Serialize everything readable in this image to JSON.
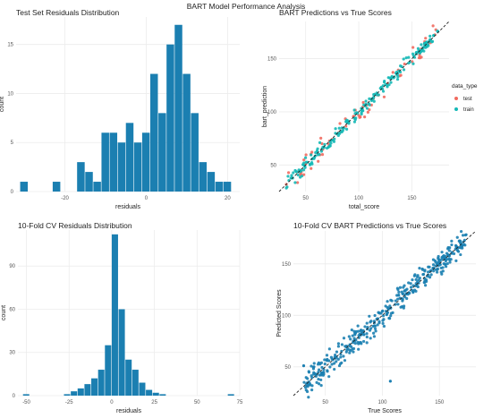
{
  "figure": {
    "title": "BART Model Performance Analysis"
  },
  "colors": {
    "bar": "#1b7fb1",
    "test": "#f16a5f",
    "train": "#14b8b6",
    "cv_point": "#1b7fb1",
    "grid": "#ececec",
    "axis_text": "#555555"
  },
  "chart_data": [
    {
      "id": "test_hist",
      "type": "bar",
      "title": "Test Set Residuals Distribution",
      "xlabel": "residuals",
      "ylabel": "count",
      "xlim": [
        -32,
        23
      ],
      "ylim": [
        0,
        17.8
      ],
      "xticks": [
        -20,
        0,
        20
      ],
      "yticks": [
        0,
        5,
        10,
        15
      ],
      "bin_width": 2,
      "bins": [
        {
          "x": -30,
          "count": 1
        },
        {
          "x": -22,
          "count": 1
        },
        {
          "x": -16,
          "count": 3
        },
        {
          "x": -14,
          "count": 2
        },
        {
          "x": -12,
          "count": 1
        },
        {
          "x": -10,
          "count": 6
        },
        {
          "x": -8,
          "count": 6
        },
        {
          "x": -6,
          "count": 5
        },
        {
          "x": -4,
          "count": 7
        },
        {
          "x": -2,
          "count": 5
        },
        {
          "x": 0,
          "count": 6
        },
        {
          "x": 2,
          "count": 12
        },
        {
          "x": 4,
          "count": 8
        },
        {
          "x": 6,
          "count": 15
        },
        {
          "x": 8,
          "count": 17
        },
        {
          "x": 10,
          "count": 12
        },
        {
          "x": 12,
          "count": 8
        },
        {
          "x": 14,
          "count": 3
        },
        {
          "x": 16,
          "count": 2
        },
        {
          "x": 18,
          "count": 1
        },
        {
          "x": 20,
          "count": 1
        }
      ]
    },
    {
      "id": "test_scatter",
      "type": "scatter",
      "title": "BART Predictions vs True Scores",
      "xlabel": "total_score",
      "ylabel": "bart_prediction",
      "xlim": [
        25,
        185
      ],
      "ylim": [
        25,
        185
      ],
      "xticks": [
        50,
        100,
        150
      ],
      "yticks": [
        50,
        100,
        150
      ],
      "legend_title": "data_type",
      "legend_position": "right",
      "series": [
        {
          "name": "test",
          "color_key": "test",
          "band": 11,
          "n": 70,
          "seed": 7
        },
        {
          "name": "train",
          "color_key": "train",
          "band": 5,
          "n": 200,
          "seed": 3
        }
      ],
      "reference_line": {
        "slope": 1,
        "intercept": 0
      }
    },
    {
      "id": "cv_hist",
      "type": "bar",
      "title": "10-Fold CV Residuals Distribution",
      "xlabel": "residuals",
      "ylabel": "count",
      "xlim": [
        -55,
        75
      ],
      "ylim": [
        0,
        115
      ],
      "xticks": [
        -50,
        -25,
        0,
        25,
        50,
        75
      ],
      "yticks": [
        0,
        30,
        60,
        90
      ],
      "bin_width": 4,
      "bins": [
        {
          "x": -50,
          "count": 1
        },
        {
          "x": -26,
          "count": 1
        },
        {
          "x": -22,
          "count": 3
        },
        {
          "x": -18,
          "count": 5
        },
        {
          "x": -14,
          "count": 8
        },
        {
          "x": -10,
          "count": 12
        },
        {
          "x": -6,
          "count": 18
        },
        {
          "x": -2,
          "count": 35
        },
        {
          "x": 2,
          "count": 112
        },
        {
          "x": 6,
          "count": 60
        },
        {
          "x": 10,
          "count": 25
        },
        {
          "x": 14,
          "count": 18
        },
        {
          "x": 18,
          "count": 9
        },
        {
          "x": 22,
          "count": 4
        },
        {
          "x": 26,
          "count": 2
        },
        {
          "x": 30,
          "count": 1
        },
        {
          "x": 70,
          "count": 1
        }
      ]
    },
    {
      "id": "cv_scatter",
      "type": "scatter",
      "title": "10-Fold CV BART Predictions vs True Scores",
      "xlabel": "True Scores",
      "ylabel": "Predicted Scores",
      "xlim": [
        22,
        182
      ],
      "ylim": [
        22,
        182
      ],
      "xticks": [
        50,
        100,
        150
      ],
      "yticks": [
        50,
        100,
        150
      ],
      "series": [
        {
          "name": "",
          "color_key": "cv_point",
          "band": 11,
          "n": 380,
          "seed": 11
        }
      ],
      "outliers": [
        [
          31,
          51
        ],
        [
          107,
          36
        ],
        [
          170,
          168
        ],
        [
          40,
          50
        ]
      ],
      "reference_line": {
        "slope": 1,
        "intercept": 0
      }
    }
  ]
}
